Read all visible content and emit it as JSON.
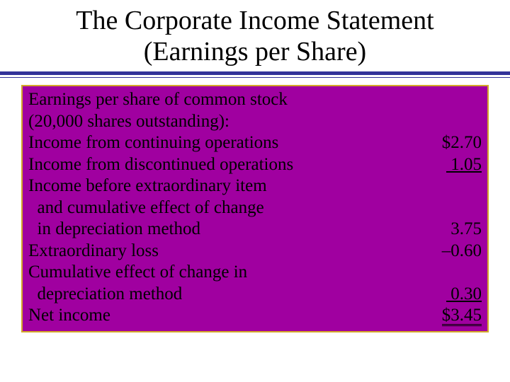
{
  "colors": {
    "background": "#ffffff",
    "title_text": "#000000",
    "divider_main": "#333399",
    "box_fill": "#a000a0",
    "box_border": "#d4a82a",
    "body_text": "#000000"
  },
  "typography": {
    "family": "Times New Roman",
    "title_size_pt": 38,
    "body_size_pt": 25
  },
  "title": {
    "line1": "The Corporate Income Statement",
    "line2": "(Earnings per Share)"
  },
  "eps": {
    "header1": "Earnings per share of common stock",
    "header2": "(20,000 shares outstanding):",
    "rows": [
      {
        "label": "Income from continuing operations",
        "value": "$2.70",
        "style": "plain"
      },
      {
        "label": "Income from discontinued operations",
        "value": " 1.05",
        "style": "underline"
      },
      {
        "label": "Income before extraordinary item",
        "value": "",
        "style": "plain"
      },
      {
        "label": "  and cumulative effect of change",
        "value": "",
        "style": "plain"
      },
      {
        "label": "  in depreciation method",
        "value": "3.75",
        "style": "plain"
      },
      {
        "label": "Extraordinary loss",
        "value": "–0.60",
        "style": "plain"
      },
      {
        "label": "Cumulative effect of change in",
        "value": "",
        "style": "plain"
      },
      {
        "label": "  depreciation method",
        "value": " 0.30",
        "style": "underline"
      },
      {
        "label": "Net income",
        "value": "$3.45",
        "style": "double"
      }
    ]
  }
}
